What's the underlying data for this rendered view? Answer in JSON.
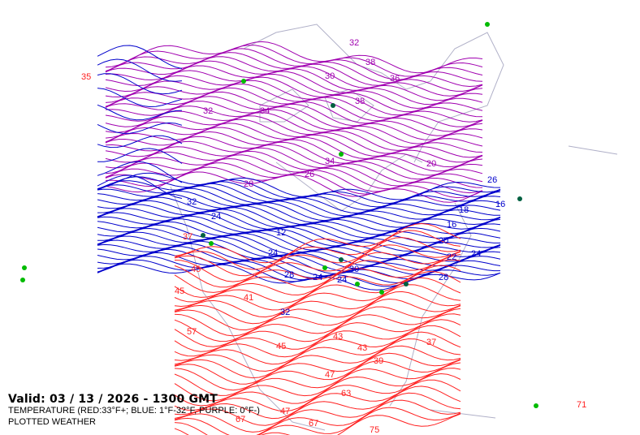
{
  "valid_line": "Valid: 03 / 13 / 2026  -  1300 GMT",
  "legend_line": "TEMPERATURE (RED:33°F+; BLUE: 1°F-32°F, PURPLE: 0°F-)",
  "plotted_line": "PLOTTED WEATHER",
  "colors": {
    "warm": "#ff2020",
    "cold": "#0000cc",
    "frigid": "#a000b0",
    "coast": "#b0b0c8",
    "weather": "#00bb00",
    "freezing": "#e0c000"
  },
  "contour_labels": {
    "red": [
      "35",
      "37",
      "45",
      "45",
      "41",
      "57",
      "45",
      "43",
      "39",
      "43",
      "67",
      "63",
      "47",
      "47",
      "67",
      "71",
      "75",
      "37"
    ],
    "blue": [
      "32",
      "24",
      "16",
      "12",
      "20",
      "24",
      "28",
      "24",
      "30",
      "32",
      "24",
      "18",
      "22",
      "16",
      "26",
      "24",
      "28"
    ],
    "purple": [
      "32",
      "34",
      "38",
      "30",
      "26",
      "34",
      "28",
      "36",
      "20",
      "32",
      "38"
    ]
  }
}
